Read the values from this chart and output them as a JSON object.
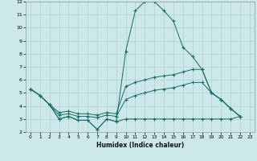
{
  "xlabel": "Humidex (Indice chaleur)",
  "color": "#1a6b6b",
  "bg_color": "#cce8e8",
  "grid_color": "#b0d0d0",
  "ylim": [
    2,
    12
  ],
  "xlim": [
    0,
    23
  ],
  "yticks": [
    2,
    3,
    4,
    5,
    6,
    7,
    8,
    9,
    10,
    11,
    12
  ],
  "xticks": [
    0,
    1,
    2,
    3,
    4,
    5,
    6,
    7,
    8,
    9,
    10,
    11,
    12,
    13,
    14,
    15,
    16,
    17,
    18,
    19,
    20,
    21,
    22,
    23
  ],
  "curve_main": {
    "x": [
      0,
      1,
      2,
      3,
      4,
      5,
      6,
      7,
      8,
      9,
      10,
      11,
      12,
      13,
      14,
      15,
      16,
      17,
      18,
      19,
      20,
      21,
      22
    ],
    "y": [
      5.3,
      4.8,
      4.1,
      3.0,
      3.2,
      2.9,
      2.9,
      2.2,
      3.0,
      2.8,
      8.2,
      11.3,
      12.0,
      12.0,
      11.3,
      10.5,
      8.5,
      7.8,
      6.8,
      5.0,
      4.5,
      3.8,
      3.2
    ]
  },
  "curve_upper": {
    "x": [
      0,
      1,
      2,
      3,
      4,
      5,
      6,
      7,
      8,
      9,
      10,
      11,
      12,
      13,
      14,
      15,
      16,
      17,
      18,
      19,
      20,
      21,
      22
    ],
    "y": [
      5.3,
      4.8,
      4.1,
      3.5,
      3.6,
      3.4,
      3.4,
      3.3,
      3.5,
      3.4,
      5.5,
      5.8,
      6.0,
      6.2,
      6.3,
      6.4,
      6.6,
      6.8,
      6.8,
      5.0,
      4.5,
      3.8,
      3.2
    ]
  },
  "curve_mid": {
    "x": [
      0,
      1,
      2,
      3,
      4,
      5,
      6,
      7,
      8,
      9,
      10,
      11,
      12,
      13,
      14,
      15,
      16,
      17,
      18,
      19,
      20,
      21,
      22
    ],
    "y": [
      5.3,
      4.8,
      4.1,
      3.3,
      3.4,
      3.2,
      3.2,
      3.1,
      3.3,
      3.2,
      4.5,
      4.8,
      5.0,
      5.2,
      5.3,
      5.4,
      5.6,
      5.8,
      5.8,
      5.0,
      4.5,
      3.8,
      3.2
    ]
  },
  "curve_low": {
    "x": [
      0,
      1,
      2,
      3,
      4,
      5,
      6,
      7,
      8,
      9,
      10,
      11,
      12,
      13,
      14,
      15,
      16,
      17,
      18,
      19,
      20,
      21,
      22
    ],
    "y": [
      5.3,
      4.8,
      4.1,
      3.0,
      3.2,
      2.9,
      2.9,
      2.2,
      3.0,
      2.8,
      3.0,
      3.0,
      3.0,
      3.0,
      3.0,
      3.0,
      3.0,
      3.0,
      3.0,
      3.0,
      3.0,
      3.0,
      3.2
    ]
  }
}
